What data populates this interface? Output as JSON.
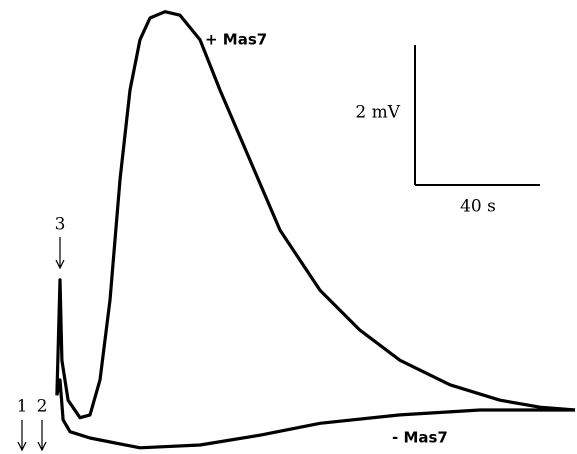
{
  "chart_data": {
    "type": "line",
    "series": [
      {
        "name": "+ Mas7",
        "color": "#000000",
        "x": [
          -1,
          0,
          0.6,
          2.6,
          6.4,
          9.6,
          12.8,
          16,
          19.2,
          22.4,
          25.6,
          28.8,
          33.6,
          38.4,
          44.8,
          51.2,
          60.8,
          70.4,
          83.2,
          96,
          108.8,
          124.8,
          140.8,
          153.6,
          164.8
        ],
        "values": [
          0.21,
          1.86,
          0.71,
          0.14,
          -0.11,
          -0.07,
          0.43,
          1.57,
          3.29,
          4.57,
          5.29,
          5.6,
          5.69,
          5.64,
          5.29,
          4.57,
          3.57,
          2.57,
          1.71,
          1.14,
          0.71,
          0.36,
          0.14,
          0.04,
          0
        ]
      },
      {
        "name": "- Mas7",
        "color": "#000000",
        "x": [
          -1,
          0,
          1,
          3.2,
          9.6,
          25.6,
          44.8,
          64,
          83.2,
          108.8,
          134.4,
          164.8
        ],
        "values": [
          0.21,
          0.43,
          -0.14,
          -0.31,
          -0.4,
          -0.54,
          -0.5,
          -0.36,
          -0.19,
          -0.07,
          0,
          0
        ]
      }
    ],
    "annotations": [
      "1",
      "2",
      "3"
    ],
    "scale_bars": {
      "y": {
        "value": 2,
        "label": "2 mV"
      },
      "x": {
        "value": 40,
        "label": "40 s"
      }
    }
  }
}
